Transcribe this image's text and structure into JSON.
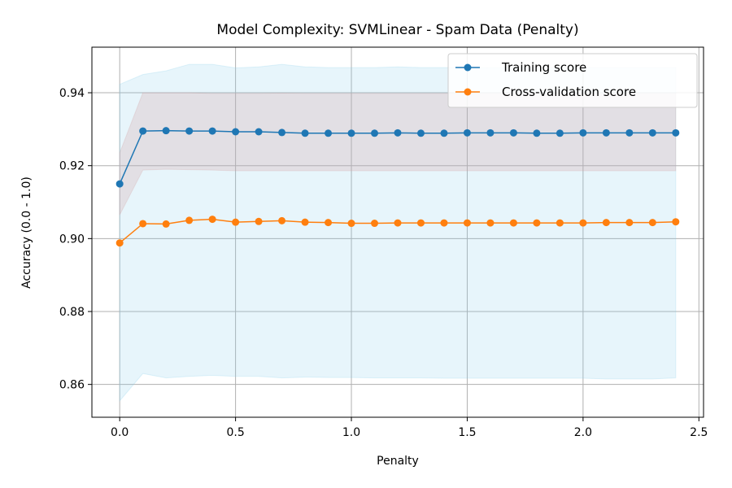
{
  "chart_data": {
    "type": "line",
    "title": "Model Complexity: SVMLinear - Spam Data (Penalty)",
    "xlabel": "Penalty",
    "ylabel": "Accuracy (0.0 - 1.0)",
    "xlim": [
      -0.12,
      2.52
    ],
    "ylim": [
      0.851,
      0.9525
    ],
    "xticks": [
      0.0,
      0.5,
      1.0,
      1.5,
      2.0,
      2.5
    ],
    "xtick_labels": [
      "0.0",
      "0.5",
      "1.0",
      "1.5",
      "2.0",
      "2.5"
    ],
    "yticks": [
      0.86,
      0.88,
      0.9,
      0.92,
      0.94
    ],
    "ytick_labels": [
      "0.86",
      "0.88",
      "0.90",
      "0.92",
      "0.94"
    ],
    "grid": true,
    "legend_position": "top-right",
    "x": [
      0.0,
      0.1,
      0.2,
      0.3,
      0.4,
      0.5,
      0.6,
      0.7,
      0.8,
      0.9,
      1.0,
      1.1,
      1.2,
      1.3,
      1.4,
      1.5,
      1.6,
      1.7,
      1.8,
      1.9,
      2.0,
      2.1,
      2.2,
      2.3,
      2.4
    ],
    "series": [
      {
        "name": "Training score",
        "color": "#1f77b4",
        "band_color": "#87ceeb",
        "values": [
          0.915,
          0.9295,
          0.9296,
          0.9295,
          0.9295,
          0.9293,
          0.9293,
          0.9291,
          0.9289,
          0.9289,
          0.9289,
          0.9289,
          0.929,
          0.9289,
          0.9289,
          0.929,
          0.929,
          0.929,
          0.9289,
          0.9289,
          0.929,
          0.929,
          0.929,
          0.929,
          0.929
        ],
        "band_upper": [
          0.9423,
          0.945,
          0.946,
          0.9478,
          0.9478,
          0.9468,
          0.9471,
          0.9478,
          0.9471,
          0.9469,
          0.9469,
          0.9469,
          0.9471,
          0.9469,
          0.9469,
          0.9469,
          0.9468,
          0.9468,
          0.9469,
          0.9469,
          0.9469,
          0.9469,
          0.9469,
          0.9469,
          0.9469
        ],
        "band_lower": [
          0.8555,
          0.863,
          0.8618,
          0.8622,
          0.8625,
          0.8622,
          0.8622,
          0.8618,
          0.862,
          0.8619,
          0.8619,
          0.8618,
          0.8618,
          0.8618,
          0.8617,
          0.8617,
          0.8617,
          0.8617,
          0.8617,
          0.8617,
          0.8617,
          0.8615,
          0.8615,
          0.8615,
          0.8618
        ]
      },
      {
        "name": "Cross-validation score",
        "color": "#ff7f0e",
        "band_color": "#d2a0a0",
        "values": [
          0.8988,
          0.9041,
          0.904,
          0.905,
          0.9053,
          0.9045,
          0.9047,
          0.9049,
          0.9045,
          0.9044,
          0.9042,
          0.9042,
          0.9043,
          0.9043,
          0.9043,
          0.9043,
          0.9043,
          0.9043,
          0.9043,
          0.9043,
          0.9043,
          0.9044,
          0.9044,
          0.9044,
          0.9046
        ],
        "band_upper": [
          0.9235,
          0.94,
          0.94,
          0.94,
          0.9398,
          0.9398,
          0.9398,
          0.9399,
          0.9398,
          0.9398,
          0.9398,
          0.9398,
          0.9398,
          0.9398,
          0.9398,
          0.9398,
          0.9398,
          0.9398,
          0.9398,
          0.9398,
          0.9398,
          0.9398,
          0.9398,
          0.9398,
          0.9398
        ],
        "band_lower": [
          0.9065,
          0.9188,
          0.919,
          0.9189,
          0.9188,
          0.9186,
          0.9186,
          0.9186,
          0.9186,
          0.9186,
          0.9186,
          0.9186,
          0.9186,
          0.9186,
          0.9186,
          0.9186,
          0.9186,
          0.9186,
          0.9186,
          0.9186,
          0.9186,
          0.9186,
          0.9186,
          0.9186,
          0.9186
        ]
      }
    ]
  }
}
